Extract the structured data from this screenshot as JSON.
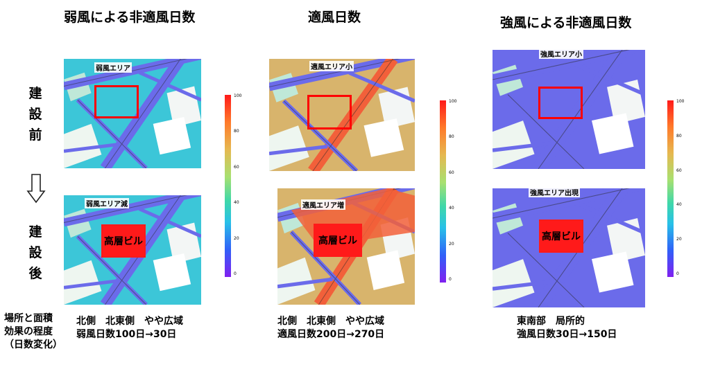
{
  "columns": [
    {
      "title": "弱風による非適風日数",
      "before_caption": "弱風エリア",
      "after_caption": "弱風エリア減",
      "summary": [
        "北側　北東側　やや広域",
        "弱風日数100日→30日"
      ]
    },
    {
      "title": "適風日数",
      "before_caption": "適風エリア小",
      "after_caption": "適風エリア増",
      "summary": [
        "北側　北東側　やや広域",
        "適風日数200日→270日"
      ]
    },
    {
      "title": "強風による非適風日数",
      "before_caption": "強風エリア小",
      "after_caption": "強風エリア出現",
      "summary": [
        "東南部　局所的",
        "強風日数30日→150日"
      ]
    }
  ],
  "row_labels": {
    "before": [
      "建",
      "設",
      "前"
    ],
    "after": [
      "建",
      "設",
      "後"
    ]
  },
  "arrow_icon": "down-outline-arrow-icon",
  "building_label": "高層ビル",
  "effect_label": [
    "場所と面積",
    "効果の程度",
    "（日数変化）"
  ],
  "colorbar_ticks": [
    "100",
    "80",
    "60",
    "40",
    "20",
    "0"
  ],
  "colors": {
    "weak_field": "#3cc6d8",
    "proper_field": "#d8b46c",
    "strong_field": "#6b6bea",
    "road": "#6b6bea",
    "road_orange": "#f2603a",
    "highlight": "#ff0000",
    "building": "#ff1a1a"
  }
}
